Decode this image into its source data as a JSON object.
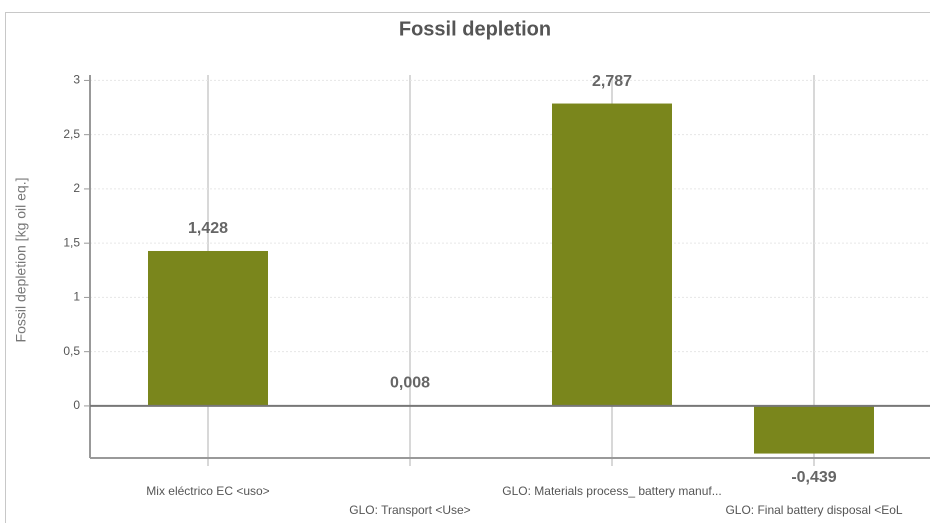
{
  "chart_data": {
    "type": "bar",
    "title": "Fossil depletion",
    "y_label": "Fossil depletion  [kg oil eq.]",
    "categories": [
      "Mix eléctrico EC <uso>",
      "GLO: Transport <Use>",
      "GLO: Materials process_ battery manuf...",
      "GLO: Final battery disposal <EoL"
    ],
    "values": [
      1.428,
      0.008,
      2.787,
      -0.439
    ],
    "value_labels": [
      "1,428",
      "0,008",
      "2,787",
      "-0,439"
    ],
    "color": "#7a861c",
    "ylim": [
      -0.48,
      3.05
    ],
    "yticks": [
      0,
      {
        "value": 0.5,
        "label": "0,5"
      },
      1,
      {
        "value": 1.5,
        "label": "1,5"
      },
      2,
      {
        "value": 2.5,
        "label": "2,5"
      },
      3
    ],
    "grid": true
  }
}
